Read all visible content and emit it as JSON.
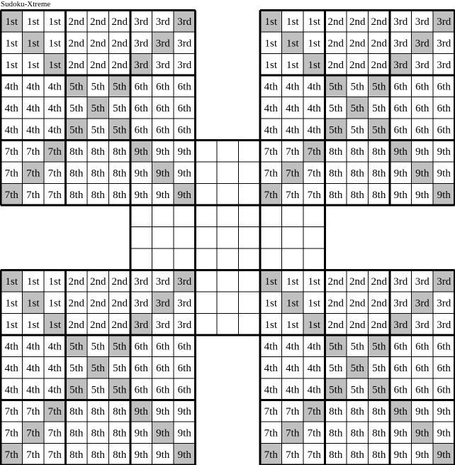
{
  "title": "Sudoku-Xtreme",
  "shade_color": "#c0c0c0",
  "shading": "both diagonals of each corner grid",
  "corner_grids": [
    "top-left",
    "top-right",
    "bottom-left",
    "bottom-right"
  ],
  "center_grid": "center (empty)",
  "corner_grid_rows": [
    [
      "1st",
      "1st",
      "1st",
      "2nd",
      "2nd",
      "2nd",
      "3rd",
      "3rd",
      "3rd"
    ],
    [
      "1st",
      "1st",
      "1st",
      "2nd",
      "2nd",
      "2nd",
      "3rd",
      "3rd",
      "3rd"
    ],
    [
      "1st",
      "1st",
      "1st",
      "2nd",
      "2nd",
      "2nd",
      "3rd",
      "3rd",
      "3rd"
    ],
    [
      "4th",
      "4th",
      "4th",
      "5th",
      "5th",
      "5th",
      "6th",
      "6th",
      "6th"
    ],
    [
      "4th",
      "4th",
      "4th",
      "5th",
      "5th",
      "5th",
      "6th",
      "6th",
      "6th"
    ],
    [
      "4th",
      "4th",
      "4th",
      "5th",
      "5th",
      "5th",
      "6th",
      "6th",
      "6th"
    ],
    [
      "7th",
      "7th",
      "7th",
      "8th",
      "8th",
      "8th",
      "9th",
      "9th",
      "9th"
    ],
    [
      "7th",
      "7th",
      "7th",
      "8th",
      "8th",
      "8th",
      "9th",
      "9th",
      "9th"
    ],
    [
      "7th",
      "7th",
      "7th",
      "8th",
      "8th",
      "8th",
      "9th",
      "9th",
      "9th"
    ]
  ]
}
